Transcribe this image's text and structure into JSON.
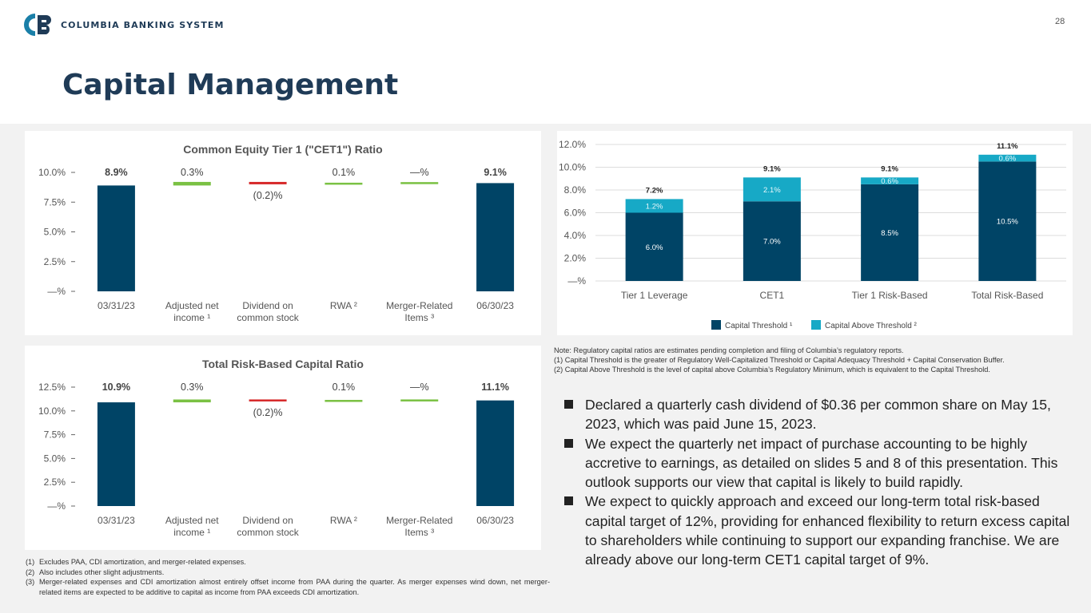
{
  "header": {
    "company_name": "COLUMBIA BANKING SYSTEM",
    "page_number": "28",
    "title": "Capital Management"
  },
  "colors": {
    "navy": "#004466",
    "green": "#7ac143",
    "red": "#d62728",
    "teal": "#17a9c6",
    "title": "#1f3b57"
  },
  "chart_data": [
    {
      "type": "bar",
      "subtype": "waterfall",
      "title": "Common Equity Tier 1 (\"CET1\") Ratio",
      "categories": [
        "03/31/23",
        "Adjusted net income ¹",
        "Dividend on common stock",
        "RWA ²",
        "Merger-Related Items ³",
        "06/30/23"
      ],
      "category_lines": [
        [
          "03/31/23"
        ],
        [
          "Adjusted net",
          "income ¹"
        ],
        [
          "Dividend on",
          "common stock"
        ],
        [
          "RWA ²"
        ],
        [
          "Merger-Related",
          "Items ³"
        ],
        [
          "06/30/23"
        ]
      ],
      "values": [
        8.9,
        0.3,
        -0.2,
        0.1,
        0.0,
        9.1
      ],
      "bar_kinds": [
        "total",
        "increase",
        "decrease",
        "increase",
        "increase",
        "total"
      ],
      "data_labels": [
        "8.9%",
        "0.3%",
        "(0.2)%",
        "0.1%",
        "—%",
        "9.1%"
      ],
      "bold_labels": [
        true,
        false,
        false,
        false,
        false,
        true
      ],
      "ylim": [
        0,
        10
      ],
      "yticks": [
        0,
        2.5,
        5,
        7.5,
        10
      ],
      "ytick_labels": [
        "—%",
        "2.5%",
        "5.0%",
        "7.5%",
        "10.0%"
      ]
    },
    {
      "type": "bar",
      "subtype": "waterfall",
      "title": "Total Risk-Based Capital Ratio",
      "categories": [
        "03/31/23",
        "Adjusted net income ¹",
        "Dividend on common stock",
        "RWA ²",
        "Merger-Related Items ³",
        "06/30/23"
      ],
      "category_lines": [
        [
          "03/31/23"
        ],
        [
          "Adjusted net",
          "income ¹"
        ],
        [
          "Dividend on",
          "common stock"
        ],
        [
          "RWA ²"
        ],
        [
          "Merger-Related",
          "Items ³"
        ],
        [
          "06/30/23"
        ]
      ],
      "values": [
        10.9,
        0.3,
        -0.2,
        0.1,
        0.0,
        11.1
      ],
      "bar_kinds": [
        "total",
        "increase",
        "decrease",
        "increase",
        "increase",
        "total"
      ],
      "data_labels": [
        "10.9%",
        "0.3%",
        "(0.2)%",
        "0.1%",
        "—%",
        "11.1%"
      ],
      "bold_labels": [
        true,
        false,
        false,
        false,
        false,
        true
      ],
      "ylim": [
        0,
        12.5
      ],
      "yticks": [
        0,
        2.5,
        5,
        7.5,
        10,
        12.5
      ],
      "ytick_labels": [
        "—%",
        "2.5%",
        "5.0%",
        "7.5%",
        "10.0%",
        "12.5%"
      ]
    },
    {
      "type": "bar",
      "subtype": "stacked",
      "title": "",
      "categories": [
        "Tier 1 Leverage",
        "CET1",
        "Tier 1 Risk-Based",
        "Total Risk-Based"
      ],
      "series": [
        {
          "name": "Capital Threshold ¹",
          "values": [
            6.0,
            7.0,
            8.5,
            10.5
          ],
          "labels": [
            "6.0%",
            "7.0%",
            "8.5%",
            "10.5%"
          ]
        },
        {
          "name": "Capital Above Threshold ²",
          "values": [
            1.2,
            2.1,
            0.6,
            0.6
          ],
          "labels": [
            "1.2%",
            "2.1%",
            "0.6%",
            "0.6%"
          ]
        }
      ],
      "totals": [
        "7.2%",
        "9.1%",
        "9.1%",
        "11.1%"
      ],
      "total_values": [
        7.2,
        9.1,
        9.1,
        11.1
      ],
      "ylim": [
        0,
        12
      ],
      "yticks": [
        0,
        2,
        4,
        6,
        8,
        10,
        12
      ],
      "ytick_labels": [
        "—%",
        "2.0%",
        "4.0%",
        "6.0%",
        "8.0%",
        "10.0%",
        "12.0%"
      ],
      "grid": true,
      "legend": "bottom-center"
    }
  ],
  "notes": {
    "note": "Note: Regulatory capital ratios are estimates pending completion and filing of Columbia’s regulatory reports.",
    "n1": "(1)  Capital Threshold is the greater of Regulatory Well-Capitalized Threshold or Capital Adequacy Threshold + Capital Conservation Buffer.",
    "n2": "(2)  Capital Above Threshold is the level of capital above Columbia’s Regulatory Minimum, which is equivalent to the Capital Threshold."
  },
  "bullets": [
    "Declared a quarterly cash dividend of $0.36 per common share on May 15, 2023, which was paid June 15, 2023.",
    "We expect the quarterly net impact of purchase accounting to be highly accretive to earnings, as detailed on slides 5 and 8 of this presentation. This outlook supports our view that capital is likely to build rapidly.",
    "We expect to quickly approach and exceed our long-term total risk-based capital target of 12%, providing for enhanced flexibility to return excess capital to shareholders while continuing to support our expanding franchise. We are already above our long-term CET1 capital target of 9%."
  ],
  "footnotes": [
    {
      "num": "(1)",
      "text": "Excludes PAA, CDI amortization, and merger-related expenses."
    },
    {
      "num": "(2)",
      "text": "Also includes other slight adjustments."
    },
    {
      "num": "(3)",
      "text": "Merger-related expenses and CDI amortization almost entirely offset income from PAA during the quarter. As merger expenses wind down, net merger-related items are expected to be additive to capital as income from PAA exceeds CDI amortization."
    }
  ]
}
